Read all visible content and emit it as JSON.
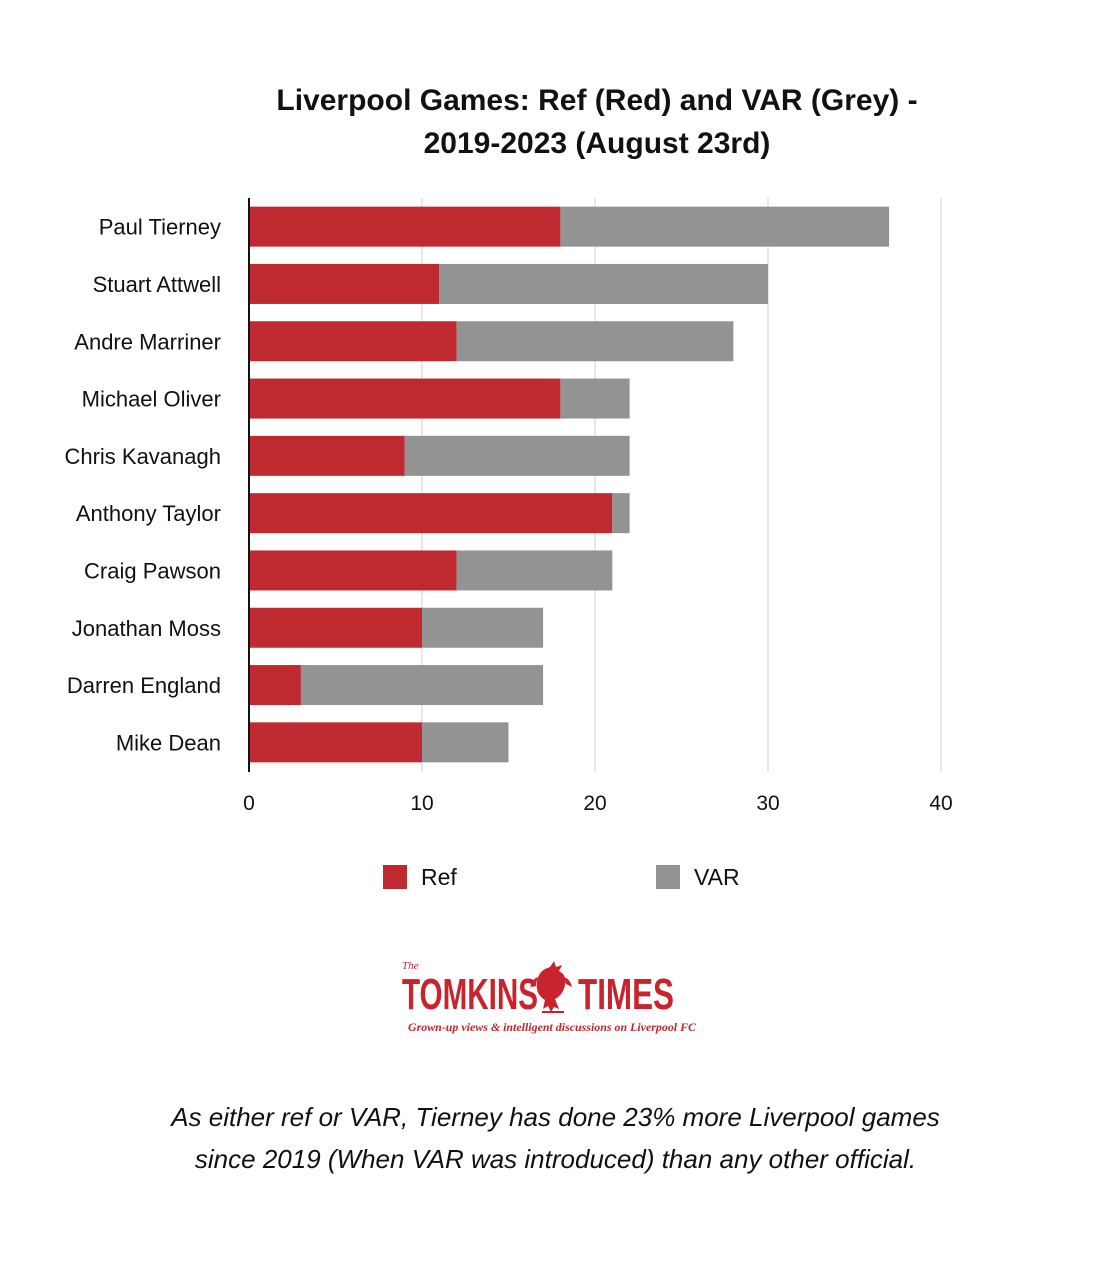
{
  "chart_data": {
    "type": "bar",
    "orientation": "horizontal",
    "stacked": true,
    "title_lines": [
      "Liverpool Games: Ref (Red) and VAR (Grey) -",
      "2019-2023 (August 23rd)"
    ],
    "categories": [
      "Paul Tierney",
      "Stuart Attwell",
      "Andre Marriner",
      "Michael Oliver",
      "Chris Kavanagh",
      "Anthony Taylor",
      "Craig Pawson",
      "Jonathan Moss",
      "Darren England",
      "Mike Dean"
    ],
    "series": [
      {
        "name": "Ref",
        "color": "#bf2a30",
        "values": [
          18,
          11,
          12,
          18,
          9,
          21,
          12,
          10,
          3,
          10
        ]
      },
      {
        "name": "VAR",
        "color": "#939393",
        "values": [
          19,
          19,
          16,
          4,
          13,
          1,
          9,
          7,
          14,
          5
        ]
      }
    ],
    "xlim": [
      0,
      40
    ],
    "xticks": [
      "0",
      "10",
      "20",
      "30",
      "40"
    ],
    "grid": "vertical",
    "legend": "bottom"
  },
  "logo": {
    "the": "The",
    "name_left": "TOMKINS",
    "name_right": "TIMES",
    "tagline": "Grown-up views & intelligent discussions on Liverpool FC",
    "icon": "liver-bird-icon"
  },
  "caption_lines": [
    "As either ref or VAR, Tierney has done 23% more Liverpool games",
    "since 2019 (When VAR was introduced) than any other official."
  ]
}
